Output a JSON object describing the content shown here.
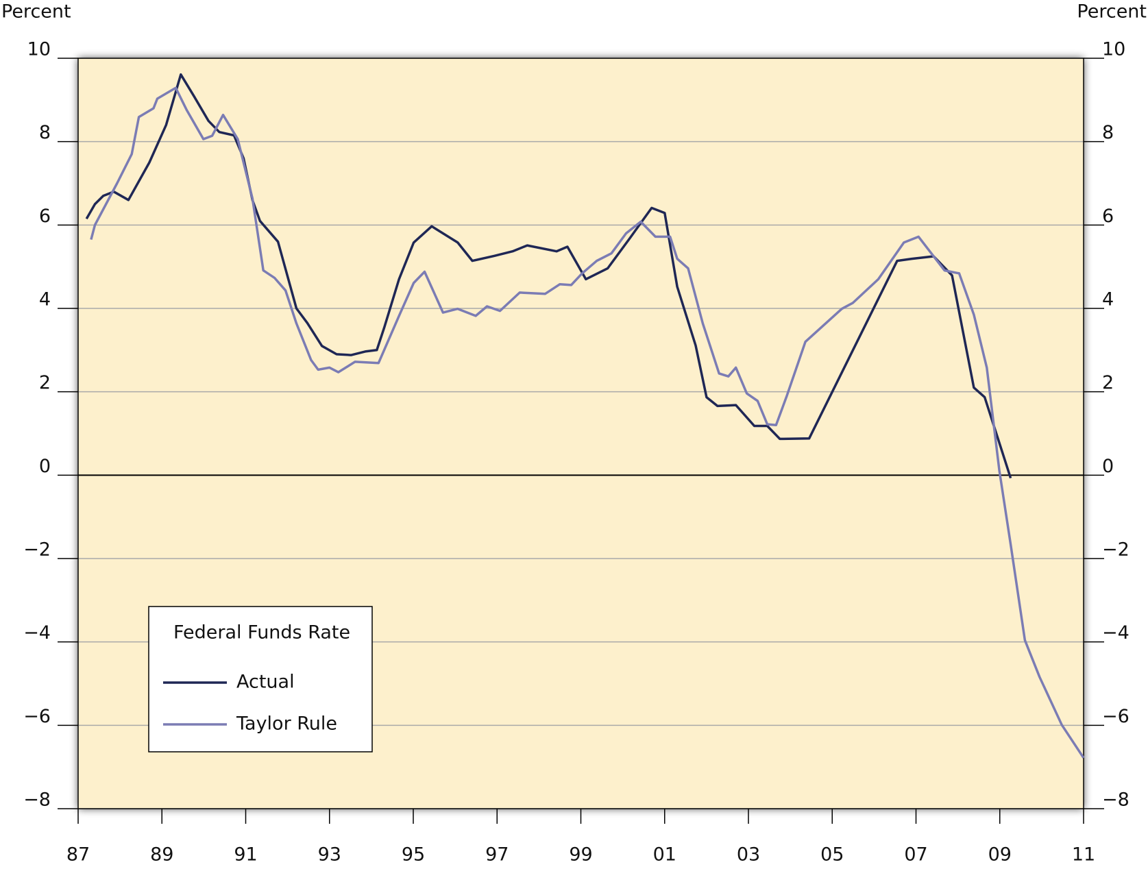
{
  "chart_data": {
    "type": "line",
    "y_label": "Percent",
    "y2_label": "Percent",
    "legend_title": "Federal Funds Rate",
    "legend": "lower left",
    "grid": true,
    "background": "#fdf0cc",
    "xlim": [
      1987,
      2011
    ],
    "xticks": [
      {
        "value": 1987,
        "label": "87"
      },
      {
        "value": 1989,
        "label": "89"
      },
      {
        "value": 1991,
        "label": "91"
      },
      {
        "value": 1993,
        "label": "93"
      },
      {
        "value": 1995,
        "label": "95"
      },
      {
        "value": 1997,
        "label": "97"
      },
      {
        "value": 1999,
        "label": "99"
      },
      {
        "value": 2001,
        "label": "01"
      },
      {
        "value": 2003,
        "label": "03"
      },
      {
        "value": 2005,
        "label": "05"
      },
      {
        "value": 2007,
        "label": "07"
      },
      {
        "value": 2009,
        "label": "09"
      },
      {
        "value": 2011,
        "label": "11"
      }
    ],
    "ylim": [
      -8,
      10
    ],
    "yticks": [
      {
        "value": -8,
        "label": "−8"
      },
      {
        "value": -6,
        "label": "−6"
      },
      {
        "value": -4,
        "label": "−4"
      },
      {
        "value": -2,
        "label": "−2"
      },
      0,
      2,
      4,
      6,
      8,
      10
    ],
    "y2lim": [
      -8,
      10
    ],
    "y2ticks": [
      {
        "value": -8,
        "label": "−8"
      },
      {
        "value": -6,
        "label": "−6"
      },
      {
        "value": -4,
        "label": "−4"
      },
      {
        "value": -2,
        "label": "−2"
      },
      0,
      2,
      4,
      6,
      8,
      10
    ],
    "series": [
      {
        "name": "Actual",
        "color": "#1f2755",
        "x": [
          1987.2,
          1987.4,
          1987.6,
          1987.85,
          1988.2,
          1988.7,
          1989.1,
          1989.45,
          1989.76,
          1990.11,
          1990.37,
          1990.72,
          1990.95,
          1991.16,
          1991.34,
          1991.77,
          1992.21,
          1992.47,
          1992.82,
          1993.17,
          1993.52,
          1993.87,
          1994.13,
          1994.31,
          1994.66,
          1995.01,
          1995.44,
          1996.06,
          1996.41,
          1996.93,
          1997.37,
          1997.72,
          1998.42,
          1998.68,
          1999.12,
          1999.64,
          2000.16,
          2000.69,
          2001.0,
          2001.3,
          2001.74,
          2002.0,
          2002.26,
          2002.7,
          2003.14,
          2003.45,
          2003.75,
          2004.45,
          2006.55,
          2006.9,
          2007.42,
          2007.86,
          2008.38,
          2008.64,
          2009.26
        ],
        "values": [
          6.15,
          6.5,
          6.7,
          6.8,
          6.6,
          7.5,
          8.4,
          9.61,
          9.1,
          8.5,
          8.23,
          8.15,
          7.6,
          6.6,
          6.1,
          5.6,
          4.0,
          3.65,
          3.1,
          2.9,
          2.88,
          2.97,
          3.0,
          3.55,
          4.7,
          5.58,
          5.97,
          5.58,
          5.14,
          5.26,
          5.37,
          5.51,
          5.37,
          5.48,
          4.7,
          4.96,
          5.67,
          6.41,
          6.29,
          4.52,
          3.11,
          1.87,
          1.66,
          1.68,
          1.18,
          1.18,
          0.87,
          0.88,
          5.14,
          5.19,
          5.25,
          4.79,
          2.1,
          1.87,
          -0.07
        ]
      },
      {
        "name": "Taylor Rule",
        "color": "#7b7cb4",
        "x": [
          1987.31,
          1987.4,
          1987.93,
          1988.28,
          1988.45,
          1988.8,
          1988.89,
          1989.33,
          1989.59,
          1989.99,
          1990.2,
          1990.46,
          1990.81,
          1991.16,
          1991.42,
          1991.69,
          1991.95,
          1992.21,
          1992.56,
          1992.73,
          1993.0,
          1993.21,
          1993.61,
          1994.17,
          1994.66,
          1995.01,
          1995.27,
          1995.71,
          1996.06,
          1996.49,
          1996.76,
          1997.07,
          1997.54,
          1998.15,
          1998.5,
          1998.77,
          1999.03,
          1999.38,
          1999.73,
          2000.08,
          2000.43,
          2000.78,
          2001.13,
          2001.3,
          2001.56,
          2001.91,
          2002.3,
          2002.52,
          2002.7,
          2002.96,
          2003.22,
          2003.45,
          2003.66,
          2003.92,
          2004.36,
          2005.23,
          2005.49,
          2006.1,
          2006.71,
          2007.06,
          2007.68,
          2008.03,
          2008.38,
          2008.69,
          2008.99,
          2009.26,
          2009.6,
          2009.95,
          2010.48,
          2011.0
        ],
        "values": [
          5.65,
          6.0,
          7.0,
          7.7,
          8.59,
          8.8,
          9.03,
          9.29,
          8.76,
          8.06,
          8.14,
          8.64,
          8.06,
          6.64,
          4.91,
          4.73,
          4.43,
          3.64,
          2.76,
          2.53,
          2.58,
          2.47,
          2.72,
          2.69,
          3.82,
          4.61,
          4.88,
          3.9,
          3.99,
          3.82,
          4.05,
          3.94,
          4.38,
          4.35,
          4.58,
          4.56,
          4.84,
          5.14,
          5.32,
          5.8,
          6.08,
          5.72,
          5.72,
          5.19,
          4.96,
          3.64,
          2.44,
          2.37,
          2.58,
          1.96,
          1.78,
          1.22,
          1.2,
          1.91,
          3.2,
          3.99,
          4.13,
          4.7,
          5.58,
          5.72,
          4.91,
          4.84,
          3.85,
          2.58,
          0.11,
          -1.66,
          -3.96,
          -4.84,
          -5.99,
          -6.78
        ]
      }
    ]
  }
}
